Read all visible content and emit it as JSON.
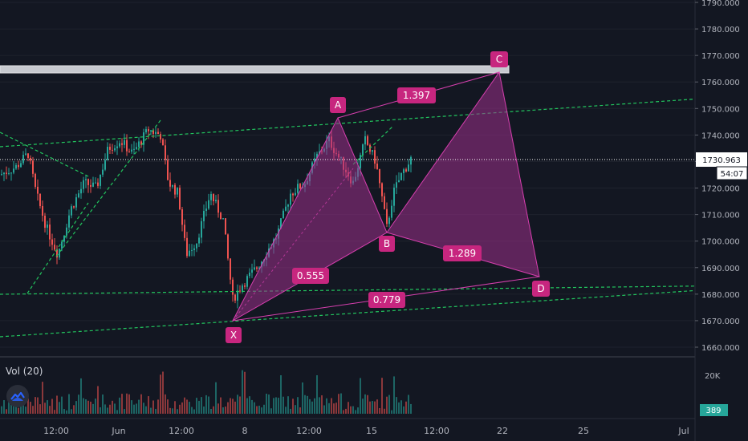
{
  "chart_data": {
    "type": "candlestick",
    "symbol_panel": {
      "volume_label": "Vol (20)"
    },
    "y_axis": {
      "ticks": [
        "1790.000",
        "1780.000",
        "1770.000",
        "1760.000",
        "1750.000",
        "1740.000",
        "1730.000",
        "1720.000",
        "1710.000",
        "1700.000",
        "1690.000",
        "1680.000",
        "1670.000",
        "1660.000"
      ],
      "tick_values": [
        1790,
        1780,
        1770,
        1760,
        1750,
        1740,
        1730,
        1720,
        1710,
        1700,
        1690,
        1680,
        1670,
        1660
      ],
      "range": [
        1657,
        1791
      ],
      "current_price": "1730.963",
      "current_value": 1730.963,
      "countdown": "54:07"
    },
    "volume_axis": {
      "ticks": [
        "20K"
      ],
      "last_volume": "389"
    },
    "x_axis": {
      "ticks": [
        "12:00",
        "Jun",
        "12:00",
        "8",
        "12:00",
        "15",
        "12:00",
        "22",
        "25",
        "Jul"
      ]
    },
    "harmonic_pattern": {
      "points": [
        {
          "label": "X",
          "value": 1670
        },
        {
          "label": "A",
          "value": 1746
        },
        {
          "label": "B",
          "value": 1703
        },
        {
          "label": "C",
          "value": 1763
        },
        {
          "label": "D",
          "value": 1687
        }
      ],
      "ratios": {
        "xab": "0.555",
        "abc": "1.397",
        "bcd": "1.289",
        "xad": "0.779"
      },
      "fill_color": "#9c2f8a",
      "line_color": "#d63fae",
      "label_color": "#c7267f"
    },
    "colors": {
      "up": "#26a69a",
      "down": "#ef5350",
      "trend": "#22c55e",
      "background": "#131722"
    }
  }
}
